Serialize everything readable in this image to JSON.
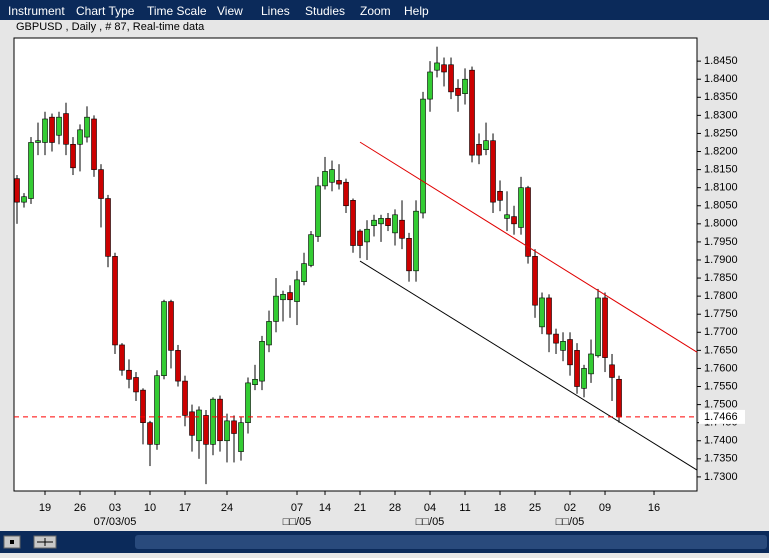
{
  "menu": [
    "Instrument",
    "Chart Type",
    "Time Scale",
    "View",
    "Lines",
    "Studies",
    "Zoom",
    "Help"
  ],
  "chart_data": {
    "type": "candlestick",
    "title": "GBPUSD , Daily , # 87, Real-time data",
    "x": [
      0,
      1,
      2,
      3,
      4,
      5,
      6,
      7,
      8,
      9,
      10,
      11,
      12,
      13,
      14,
      15,
      16,
      17,
      18,
      19,
      20,
      21,
      22,
      23,
      24,
      25,
      26,
      27,
      28,
      29,
      30,
      31,
      32,
      33,
      34,
      35,
      36,
      37,
      38,
      39,
      40,
      41,
      42,
      43,
      44,
      45,
      46,
      47,
      48,
      49,
      50,
      51,
      52,
      53,
      54,
      55,
      56,
      57,
      58,
      59,
      60,
      61,
      62,
      63,
      64,
      65,
      66,
      67,
      68,
      69,
      70,
      71,
      72,
      73,
      74,
      75,
      76,
      77,
      78,
      79,
      80,
      81,
      82,
      83,
      84,
      85,
      86
    ],
    "open": [
      1.8125,
      1.806,
      1.807,
      1.8225,
      1.8225,
      1.8295,
      1.8245,
      1.8305,
      1.822,
      1.822,
      1.824,
      1.829,
      1.815,
      1.807,
      1.791,
      1.7665,
      1.7595,
      1.7575,
      1.754,
      1.745,
      1.739,
      1.758,
      1.7785,
      1.765,
      1.7565,
      1.748,
      1.74,
      1.747,
      1.739,
      1.7515,
      1.74,
      1.7455,
      1.737,
      1.745,
      1.7555,
      1.7565,
      1.7665,
      1.773,
      1.779,
      1.781,
      1.7785,
      1.784,
      1.7885,
      1.7965,
      1.8105,
      1.8115,
      1.812,
      1.8115,
      1.8065,
      1.798,
      1.795,
      1.7995,
      1.8,
      1.8015,
      1.7975,
      1.801,
      1.796,
      1.787,
      1.803,
      1.8345,
      1.8425,
      1.844,
      1.844,
      1.8375,
      1.836,
      1.8425,
      1.822,
      1.8205,
      1.823,
      1.809,
      1.8015,
      1.802,
      1.799,
      1.81,
      1.791,
      1.7715,
      1.7795,
      1.7695,
      1.765,
      1.768,
      1.765,
      1.7545,
      1.7585,
      1.7635,
      1.7795,
      1.761,
      1.757
    ],
    "high": [
      1.8135,
      1.8085,
      1.824,
      1.828,
      1.831,
      1.8305,
      1.831,
      1.8335,
      1.824,
      1.8275,
      1.8325,
      1.83,
      1.8165,
      1.808,
      1.792,
      1.767,
      1.7625,
      1.759,
      1.7545,
      1.7455,
      1.7595,
      1.779,
      1.779,
      1.7665,
      1.758,
      1.75,
      1.7495,
      1.7485,
      1.752,
      1.7525,
      1.7475,
      1.747,
      1.7465,
      1.7575,
      1.761,
      1.769,
      1.776,
      1.785,
      1.7815,
      1.783,
      1.787,
      1.792,
      1.798,
      1.813,
      1.8185,
      1.8175,
      1.8165,
      1.8125,
      1.807,
      1.7985,
      1.801,
      1.8025,
      1.8025,
      1.803,
      1.804,
      1.8065,
      1.7975,
      1.8065,
      1.8365,
      1.845,
      1.849,
      1.846,
      1.846,
      1.84,
      1.843,
      1.8435,
      1.825,
      1.828,
      1.825,
      1.812,
      1.809,
      1.805,
      1.813,
      1.8105,
      1.793,
      1.781,
      1.7805,
      1.771,
      1.77,
      1.77,
      1.767,
      1.761,
      1.768,
      1.782,
      1.781,
      1.764,
      1.758
    ],
    "low": [
      1.8,
      1.8045,
      1.8055,
      1.819,
      1.819,
      1.82,
      1.822,
      1.819,
      1.8135,
      1.8145,
      1.8225,
      1.813,
      1.799,
      1.788,
      1.764,
      1.758,
      1.7545,
      1.751,
      1.739,
      1.733,
      1.7375,
      1.757,
      1.76,
      1.755,
      1.744,
      1.737,
      1.735,
      1.728,
      1.736,
      1.737,
      1.734,
      1.734,
      1.7345,
      1.742,
      1.754,
      1.754,
      1.7645,
      1.77,
      1.773,
      1.774,
      1.772,
      1.783,
      1.788,
      1.795,
      1.8095,
      1.809,
      1.8095,
      1.803,
      1.792,
      1.7905,
      1.79,
      1.7965,
      1.795,
      1.798,
      1.794,
      1.793,
      1.784,
      1.784,
      1.8015,
      1.831,
      1.8405,
      1.838,
      1.8345,
      1.831,
      1.833,
      1.817,
      1.8165,
      1.819,
      1.803,
      1.8035,
      1.798,
      1.797,
      1.797,
      1.789,
      1.774,
      1.7695,
      1.7645,
      1.764,
      1.762,
      1.758,
      1.753,
      1.752,
      1.756,
      1.763,
      1.759,
      1.751,
      1.745
    ],
    "close": [
      1.806,
      1.8075,
      1.8225,
      1.823,
      1.829,
      1.8225,
      1.8295,
      1.822,
      1.8155,
      1.826,
      1.8295,
      1.815,
      1.807,
      1.791,
      1.7665,
      1.7595,
      1.757,
      1.7535,
      1.745,
      1.739,
      1.758,
      1.7785,
      1.765,
      1.7565,
      1.747,
      1.7415,
      1.7485,
      1.739,
      1.7515,
      1.74,
      1.7455,
      1.742,
      1.745,
      1.756,
      1.757,
      1.7675,
      1.773,
      1.78,
      1.7805,
      1.779,
      1.7845,
      1.789,
      1.797,
      1.8105,
      1.8145,
      1.815,
      1.811,
      1.805,
      1.794,
      1.794,
      1.7985,
      1.801,
      1.8015,
      1.7995,
      1.8025,
      1.796,
      1.787,
      1.8035,
      1.8345,
      1.842,
      1.8445,
      1.842,
      1.8365,
      1.8355,
      1.84,
      1.819,
      1.819,
      1.823,
      1.806,
      1.8065,
      1.8025,
      1.8,
      1.81,
      1.791,
      1.7775,
      1.7795,
      1.7695,
      1.767,
      1.7675,
      1.761,
      1.755,
      1.76,
      1.764,
      1.7795,
      1.763,
      1.7575,
      1.7466
    ],
    "up_color": "#33cc33",
    "down_color": "#cc0000",
    "xlim": [
      -0.43,
      97.14
    ],
    "ylim": [
      1.7261,
      1.8514
    ],
    "xticks": [
      {
        "value": 4,
        "label": "19"
      },
      {
        "value": 9,
        "label": "26"
      },
      {
        "value": 14,
        "label": "03"
      },
      {
        "value": 19,
        "label": "10"
      },
      {
        "value": 24,
        "label": "17"
      },
      {
        "value": 30,
        "label": "24"
      },
      {
        "value": 40,
        "label": "07"
      },
      {
        "value": 44,
        "label": "14"
      },
      {
        "value": 49,
        "label": "21"
      },
      {
        "value": 54,
        "label": "28"
      },
      {
        "value": 59,
        "label": "04"
      },
      {
        "value": 64,
        "label": "11"
      },
      {
        "value": 69,
        "label": "18"
      },
      {
        "value": 74,
        "label": "25"
      },
      {
        "value": 79,
        "label": "02"
      },
      {
        "value": 84,
        "label": "09"
      },
      {
        "value": 91,
        "label": "16"
      }
    ],
    "x_sublabels": [
      {
        "value": 14,
        "label": "07/03/05"
      },
      {
        "value": 40,
        "label": "□□/05"
      },
      {
        "value": 59,
        "label": "□□/05"
      },
      {
        "value": 79,
        "label": "□□/05"
      }
    ],
    "yticks": [
      {
        "value": 1.73,
        "label": "1.7300"
      },
      {
        "value": 1.735,
        "label": "1.7350"
      },
      {
        "value": 1.74,
        "label": "1.7400"
      },
      {
        "value": 1.745,
        "label": "1.7450"
      },
      {
        "value": 1.75,
        "label": "1.7500"
      },
      {
        "value": 1.755,
        "label": "1.7550"
      },
      {
        "value": 1.76,
        "label": "1.7600"
      },
      {
        "value": 1.765,
        "label": "1.7650"
      },
      {
        "value": 1.77,
        "label": "1.7700"
      },
      {
        "value": 1.775,
        "label": "1.7750"
      },
      {
        "value": 1.78,
        "label": "1.7800"
      },
      {
        "value": 1.785,
        "label": "1.7850"
      },
      {
        "value": 1.79,
        "label": "1.7900"
      },
      {
        "value": 1.795,
        "label": "1.7950"
      },
      {
        "value": 1.8,
        "label": "1.8000"
      },
      {
        "value": 1.805,
        "label": "1.8050"
      },
      {
        "value": 1.81,
        "label": "1.8100"
      },
      {
        "value": 1.815,
        "label": "1.8150"
      },
      {
        "value": 1.82,
        "label": "1.8200"
      },
      {
        "value": 1.825,
        "label": "1.8250"
      },
      {
        "value": 1.83,
        "label": "1.8300"
      },
      {
        "value": 1.835,
        "label": "1.8350"
      },
      {
        "value": 1.84,
        "label": "1.8400"
      },
      {
        "value": 1.845,
        "label": "1.8450"
      }
    ],
    "trendlines": [
      {
        "x": [
          49,
          97.14
        ],
        "y": [
          1.8226,
          1.7645
        ],
        "color": "#e00000"
      },
      {
        "x": [
          49,
          97.14
        ],
        "y": [
          1.7897,
          1.7319
        ],
        "color": "#000000"
      }
    ],
    "last_price": 1.7466,
    "last_price_color": "#ff0000"
  }
}
